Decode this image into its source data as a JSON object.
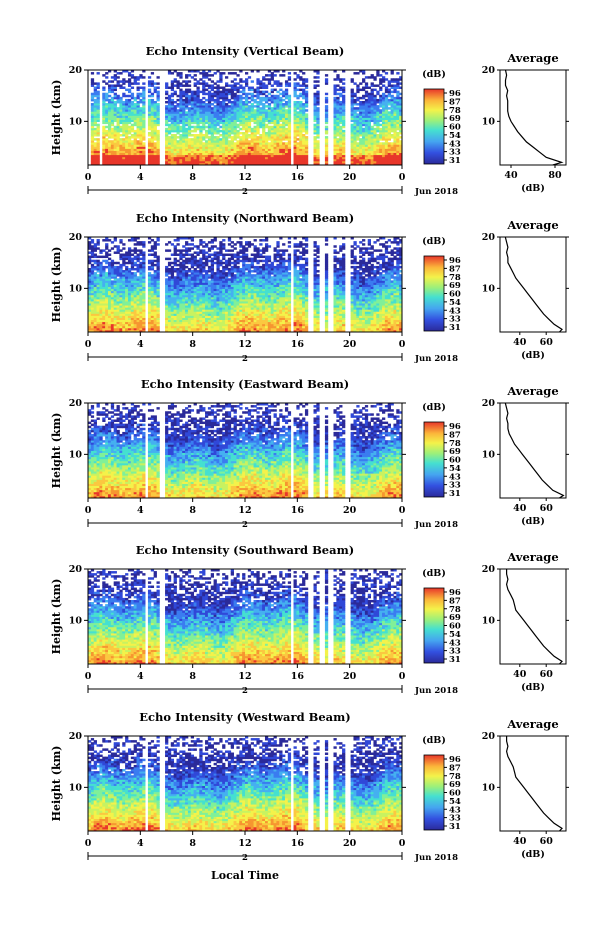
{
  "figure": {
    "panel_titles": [
      "Echo Intensity (Vertical Beam)",
      "Echo Intensity (Northward Beam)",
      "Echo Intensity (Eastward Beam)",
      "Echo Intensity (Southward Beam)",
      "Echo Intensity (Westward Beam)"
    ],
    "y_label": "Height (km)",
    "x_label": "Local Time",
    "date_label": "Jun 2018",
    "day_label": "2",
    "colorbar_unit": "(dB)",
    "colorbar_ticks": [
      "96",
      "87",
      "78",
      "69",
      "60",
      "54",
      "43",
      "33",
      "31"
    ],
    "average_title": "Average",
    "average_xlabel": "(dB)"
  },
  "chart_data": [
    {
      "type": "heatmap",
      "beam": "Vertical",
      "title": "Echo Intensity (Vertical Beam)",
      "xlabel": "",
      "ylabel": "Height (km)",
      "x_ticks": [
        "0",
        "4",
        "8",
        "12",
        "16",
        "20",
        "0"
      ],
      "y_ticks": [
        "10",
        "20"
      ],
      "xlim": [
        0,
        24
      ],
      "ylim": [
        1.5,
        20
      ],
      "colorbar": {
        "label": "(dB)",
        "ticks": [
          "96",
          "87",
          "78",
          "69",
          "60",
          "54",
          "43",
          "33",
          "31"
        ]
      },
      "data_gaps_local_time": [
        [
          0.0,
          0.3
        ],
        [
          0.8,
          1.0
        ],
        [
          4.3,
          4.6
        ],
        [
          5.5,
          5.9
        ],
        [
          15.4,
          15.8
        ],
        [
          16.9,
          17.3
        ],
        [
          17.7,
          18.0
        ],
        [
          18.3,
          18.7
        ],
        [
          19.6,
          20.0
        ]
      ],
      "average_profile": {
        "title": "Average",
        "xlabel": "(dB)",
        "x_ticks": [
          "40",
          "80"
        ],
        "y_ticks": [
          "10",
          "20"
        ],
        "xlim": [
          30,
          90
        ],
        "heights_km": [
          1.5,
          2,
          3,
          4,
          5,
          6,
          7,
          8,
          9,
          10,
          11,
          12,
          13,
          14,
          15,
          16,
          17,
          18,
          19,
          20
        ],
        "values_db": [
          78,
          86,
          72,
          66,
          60,
          54,
          50,
          46,
          43,
          40,
          38,
          37,
          37,
          37,
          36,
          37,
          35,
          35,
          36,
          35
        ]
      }
    },
    {
      "type": "heatmap",
      "beam": "Northward",
      "title": "Echo Intensity (Northward Beam)",
      "xlabel": "",
      "ylabel": "Height (km)",
      "x_ticks": [
        "0",
        "4",
        "8",
        "12",
        "16",
        "20",
        "0"
      ],
      "y_ticks": [
        "10",
        "20"
      ],
      "xlim": [
        0,
        24
      ],
      "ylim": [
        1.5,
        20
      ],
      "colorbar": {
        "label": "(dB)",
        "ticks": [
          "96",
          "87",
          "78",
          "69",
          "60",
          "54",
          "43",
          "33",
          "31"
        ]
      },
      "data_gaps_local_time": [
        [
          4.3,
          4.6
        ],
        [
          5.5,
          5.9
        ],
        [
          15.4,
          15.8
        ],
        [
          16.9,
          17.3
        ],
        [
          17.7,
          18.0
        ],
        [
          18.3,
          18.7
        ],
        [
          19.6,
          20.0
        ]
      ],
      "average_profile": {
        "title": "Average",
        "xlabel": "(dB)",
        "x_ticks": [
          "40",
          "60"
        ],
        "y_ticks": [
          "10",
          "20"
        ],
        "xlim": [
          25,
          75
        ],
        "heights_km": [
          1.5,
          2,
          3,
          4,
          5,
          6,
          7,
          8,
          9,
          10,
          11,
          12,
          13,
          14,
          15,
          16,
          17,
          18,
          19,
          20
        ],
        "values_db": [
          70,
          72,
          66,
          62,
          58,
          55,
          52,
          49,
          46,
          43,
          40,
          37,
          35,
          33,
          31,
          31,
          30,
          31,
          30,
          29
        ]
      }
    },
    {
      "type": "heatmap",
      "beam": "Eastward",
      "title": "Echo Intensity (Eastward Beam)",
      "xlabel": "",
      "ylabel": "Height (km)",
      "x_ticks": [
        "0",
        "4",
        "8",
        "12",
        "16",
        "20",
        "0"
      ],
      "y_ticks": [
        "10",
        "20"
      ],
      "xlim": [
        0,
        24
      ],
      "ylim": [
        1.5,
        20
      ],
      "colorbar": {
        "label": "(dB)",
        "ticks": [
          "96",
          "87",
          "78",
          "69",
          "60",
          "54",
          "43",
          "33",
          "31"
        ]
      },
      "data_gaps_local_time": [
        [
          4.3,
          4.6
        ],
        [
          5.5,
          5.9
        ],
        [
          15.4,
          15.8
        ],
        [
          16.9,
          17.3
        ],
        [
          17.7,
          18.0
        ],
        [
          18.3,
          18.7
        ],
        [
          19.6,
          20.0
        ]
      ],
      "average_profile": {
        "title": "Average",
        "xlabel": "(dB)",
        "x_ticks": [
          "40",
          "60"
        ],
        "y_ticks": [
          "10",
          "20"
        ],
        "xlim": [
          25,
          75
        ],
        "heights_km": [
          1.5,
          2,
          3,
          4,
          5,
          6,
          7,
          8,
          9,
          10,
          11,
          12,
          13,
          14,
          15,
          16,
          17,
          18,
          19,
          20
        ],
        "values_db": [
          70,
          73,
          65,
          61,
          57,
          54,
          51,
          48,
          45,
          42,
          39,
          36,
          34,
          32,
          31,
          31,
          30,
          31,
          30,
          29
        ]
      }
    },
    {
      "type": "heatmap",
      "beam": "Southward",
      "title": "Echo Intensity (Southward Beam)",
      "xlabel": "",
      "ylabel": "Height (km)",
      "x_ticks": [
        "0",
        "4",
        "8",
        "12",
        "16",
        "20",
        "0"
      ],
      "y_ticks": [
        "10",
        "20"
      ],
      "xlim": [
        0,
        24
      ],
      "ylim": [
        1.5,
        20
      ],
      "colorbar": {
        "label": "(dB)",
        "ticks": [
          "96",
          "87",
          "78",
          "69",
          "60",
          "54",
          "43",
          "33",
          "31"
        ]
      },
      "data_gaps_local_time": [
        [
          4.3,
          4.6
        ],
        [
          5.5,
          5.9
        ],
        [
          15.4,
          15.8
        ],
        [
          16.9,
          17.3
        ],
        [
          17.7,
          18.0
        ],
        [
          18.3,
          18.7
        ],
        [
          19.6,
          20.0
        ]
      ],
      "average_profile": {
        "title": "Average",
        "xlabel": "(dB)",
        "x_ticks": [
          "40",
          "60"
        ],
        "y_ticks": [
          "10",
          "20"
        ],
        "xlim": [
          25,
          75
        ],
        "heights_km": [
          1.5,
          2,
          3,
          4,
          5,
          6,
          7,
          8,
          9,
          10,
          11,
          12,
          13,
          14,
          15,
          16,
          17,
          18,
          19,
          20
        ],
        "values_db": [
          70,
          72,
          66,
          62,
          58,
          55,
          52,
          49,
          46,
          43,
          40,
          37,
          36,
          35,
          33,
          31,
          30,
          31,
          30,
          30
        ]
      }
    },
    {
      "type": "heatmap",
      "beam": "Westward",
      "title": "Echo Intensity (Westward Beam)",
      "xlabel": "Local Time",
      "ylabel": "Height (km)",
      "x_ticks": [
        "0",
        "4",
        "8",
        "12",
        "16",
        "20",
        "0"
      ],
      "y_ticks": [
        "10",
        "20"
      ],
      "xlim": [
        0,
        24
      ],
      "ylim": [
        1.5,
        20
      ],
      "colorbar": {
        "label": "(dB)",
        "ticks": [
          "96",
          "87",
          "78",
          "69",
          "60",
          "54",
          "43",
          "33",
          "31"
        ]
      },
      "data_gaps_local_time": [
        [
          4.3,
          4.6
        ],
        [
          5.5,
          5.9
        ],
        [
          15.4,
          15.8
        ],
        [
          16.9,
          17.3
        ],
        [
          17.7,
          18.0
        ],
        [
          18.3,
          18.7
        ],
        [
          19.6,
          20.0
        ]
      ],
      "average_profile": {
        "title": "Average",
        "xlabel": "(dB)",
        "x_ticks": [
          "40",
          "60"
        ],
        "y_ticks": [
          "10",
          "20"
        ],
        "xlim": [
          25,
          75
        ],
        "heights_km": [
          1.5,
          2,
          3,
          4,
          5,
          6,
          7,
          8,
          9,
          10,
          11,
          12,
          13,
          14,
          15,
          16,
          17,
          18,
          19,
          20
        ],
        "values_db": [
          70,
          72,
          66,
          62,
          58,
          55,
          52,
          49,
          46,
          43,
          40,
          37,
          36,
          35,
          33,
          31,
          30,
          31,
          30,
          30
        ]
      }
    }
  ]
}
